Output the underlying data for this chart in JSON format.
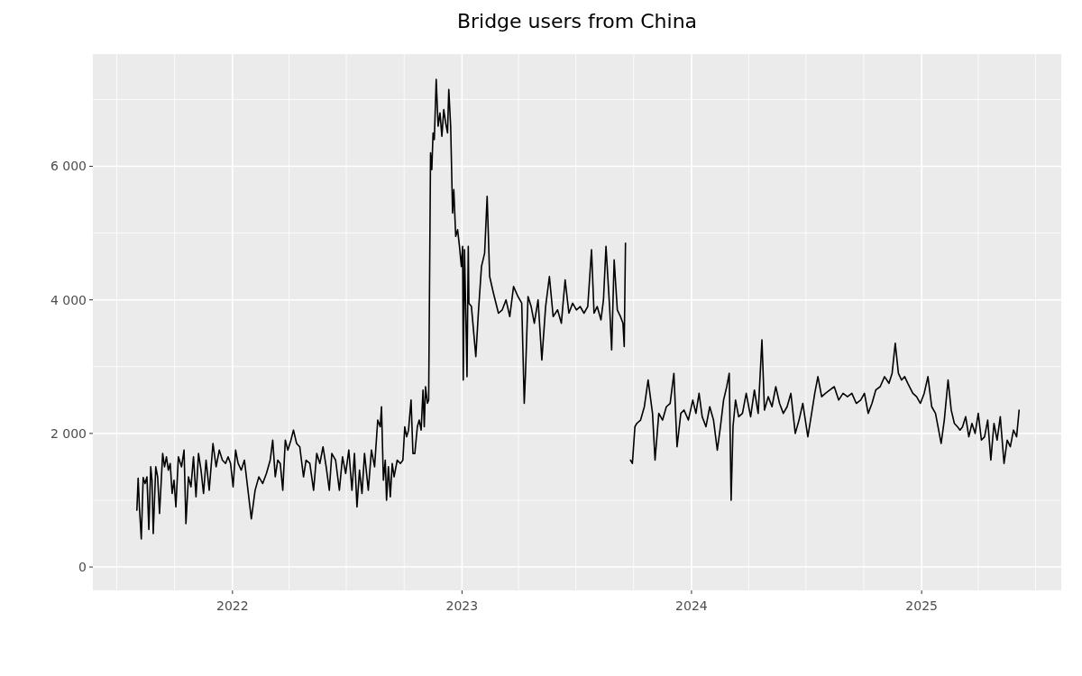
{
  "chart_data": {
    "type": "line",
    "title": "Bridge users from China",
    "xlim": [
      "2021-05-24",
      "2025-08-11"
    ],
    "xticks": [
      {
        "value": "2021-07-01",
        "label": null
      },
      {
        "value": "2021-10-01",
        "label": null
      },
      {
        "value": "2022-01-01",
        "label": "2022"
      },
      {
        "value": "2022-04-01",
        "label": null
      },
      {
        "value": "2022-07-01",
        "label": null
      },
      {
        "value": "2022-10-01",
        "label": null
      },
      {
        "value": "2023-01-01",
        "label": "2023"
      },
      {
        "value": "2023-04-01",
        "label": null
      },
      {
        "value": "2023-07-01",
        "label": null
      },
      {
        "value": "2023-10-01",
        "label": null
      },
      {
        "value": "2024-01-01",
        "label": "2024"
      },
      {
        "value": "2024-04-01",
        "label": null
      },
      {
        "value": "2024-07-01",
        "label": null
      },
      {
        "value": "2024-10-01",
        "label": null
      },
      {
        "value": "2025-01-01",
        "label": "2025"
      },
      {
        "value": "2025-04-01",
        "label": null
      },
      {
        "value": "2025-07-01",
        "label": null
      }
    ],
    "ylim": [
      -350,
      7680
    ],
    "yticks": [
      0,
      {
        "value": 1000,
        "label": null
      },
      {
        "value": 2000,
        "label": "2 000"
      },
      {
        "value": 3000,
        "label": null
      },
      {
        "value": 4000,
        "label": "4 000"
      },
      {
        "value": 5000,
        "label": null
      },
      {
        "value": 6000,
        "label": "6 000"
      },
      {
        "value": 7000,
        "label": null
      }
    ],
    "grid": true,
    "x": [
      "2021-08-02",
      "2021-08-04",
      "2021-08-06",
      "2021-08-09",
      "2021-08-12",
      "2021-08-15",
      "2021-08-18",
      "2021-08-21",
      "2021-08-24",
      "2021-08-26",
      "2021-08-28",
      "2021-09-01",
      "2021-09-04",
      "2021-09-07",
      "2021-09-12",
      "2021-09-15",
      "2021-09-18",
      "2021-09-21",
      "2021-09-24",
      "2021-09-27",
      "2021-09-30",
      "2021-10-03",
      "2021-10-07",
      "2021-10-12",
      "2021-10-16",
      "2021-10-19",
      "2021-10-23",
      "2021-10-27",
      "2021-10-31",
      "2021-11-04",
      "2021-11-08",
      "2021-11-12",
      "2021-11-16",
      "2021-11-20",
      "2021-11-25",
      "2021-12-01",
      "2021-12-06",
      "2021-12-11",
      "2021-12-16",
      "2021-12-21",
      "2021-12-25",
      "2021-12-29",
      "2022-01-02",
      "2022-01-06",
      "2022-01-10",
      "2022-01-15",
      "2022-01-20",
      "2022-01-25",
      "2022-01-31",
      "2022-02-06",
      "2022-02-12",
      "2022-02-18",
      "2022-02-24",
      "2022-03-02",
      "2022-03-06",
      "2022-03-10",
      "2022-03-14",
      "2022-03-18",
      "2022-03-22",
      "2022-03-26",
      "2022-03-30",
      "2022-04-04",
      "2022-04-08",
      "2022-04-13",
      "2022-04-18",
      "2022-04-24",
      "2022-04-28",
      "2022-05-04",
      "2022-05-10",
      "2022-05-15",
      "2022-05-20",
      "2022-05-25",
      "2022-05-30",
      "2022-06-04",
      "2022-06-08",
      "2022-06-14",
      "2022-06-20",
      "2022-06-25",
      "2022-06-30",
      "2022-07-05",
      "2022-07-10",
      "2022-07-14",
      "2022-07-18",
      "2022-07-22",
      "2022-07-26",
      "2022-07-30",
      "2022-08-05",
      "2022-08-10",
      "2022-08-15",
      "2022-08-20",
      "2022-08-24",
      "2022-08-26",
      "2022-08-29",
      "2022-09-01",
      "2022-09-03",
      "2022-09-06",
      "2022-09-09",
      "2022-09-12",
      "2022-09-15",
      "2022-09-20",
      "2022-09-25",
      "2022-09-29",
      "2022-10-02",
      "2022-10-05",
      "2022-10-08",
      "2022-10-12",
      "2022-10-15",
      "2022-10-18",
      "2022-10-22",
      "2022-10-25",
      "2022-10-28",
      "2022-10-31",
      "2022-11-02",
      "2022-11-04",
      "2022-11-07",
      "2022-11-09",
      "2022-11-12",
      "2022-11-14",
      "2022-11-16",
      "2022-11-18",
      "2022-11-21",
      "2022-11-24",
      "2022-11-27",
      "2022-11-30",
      "2022-12-03",
      "2022-12-06",
      "2022-12-09",
      "2022-12-11",
      "2022-12-14",
      "2022-12-17",
      "2022-12-19",
      "2022-12-22",
      "2022-12-25",
      "2022-12-28",
      "2022-12-31",
      "2023-01-02",
      "2023-01-03",
      "2023-01-05",
      "2023-01-09",
      "2023-01-11",
      "2023-01-12",
      "2023-01-16",
      "2023-01-23",
      "2023-01-27",
      "2023-02-01",
      "2023-02-06",
      "2023-02-10",
      "2023-02-14",
      "2023-02-20",
      "2023-02-28",
      "2023-03-06",
      "2023-03-12",
      "2023-03-18",
      "2023-03-24",
      "2023-03-31",
      "2023-04-06",
      "2023-04-10",
      "2023-04-12",
      "2023-04-16",
      "2023-04-21",
      "2023-04-26",
      "2023-05-02",
      "2023-05-08",
      "2023-05-14",
      "2023-05-20",
      "2023-05-26",
      "2023-06-02",
      "2023-06-08",
      "2023-06-14",
      "2023-06-20",
      "2023-06-26",
      "2023-07-02",
      "2023-07-08",
      "2023-07-14",
      "2023-07-20",
      "2023-07-26",
      "2023-07-30",
      "2023-08-04",
      "2023-08-10",
      "2023-08-14",
      "2023-08-18",
      "2023-08-24",
      "2023-08-27",
      "2023-08-31",
      "2023-09-05",
      "2023-09-10",
      "2023-09-14",
      "2023-09-16",
      "2023-09-18",
      "2023-09-22",
      "2023-09-26",
      "2023-09-29",
      "2023-10-03",
      "2023-10-06",
      "2023-10-12",
      "2023-10-18",
      "2023-10-24",
      "2023-10-31",
      "2023-11-04",
      "2023-11-10",
      "2023-11-16",
      "2023-11-22",
      "2023-11-28",
      "2023-12-04",
      "2023-12-09",
      "2023-12-15",
      "2023-12-20",
      "2023-12-27",
      "2024-01-03",
      "2024-01-08",
      "2024-01-13",
      "2024-01-18",
      "2024-01-24",
      "2024-01-30",
      "2024-02-05",
      "2024-02-11",
      "2024-02-16",
      "2024-02-21",
      "2024-02-26",
      "2024-03-01",
      "2024-03-04",
      "2024-03-07",
      "2024-03-11",
      "2024-03-16",
      "2024-03-22",
      "2024-03-28",
      "2024-04-04",
      "2024-04-10",
      "2024-04-16",
      "2024-04-22",
      "2024-04-26",
      "2024-05-02",
      "2024-05-08",
      "2024-05-14",
      "2024-05-20",
      "2024-05-26",
      "2024-06-01",
      "2024-06-07",
      "2024-06-14",
      "2024-06-20",
      "2024-06-26",
      "2024-07-04",
      "2024-07-10",
      "2024-07-15",
      "2024-07-20",
      "2024-07-26",
      "2024-08-01",
      "2024-08-08",
      "2024-08-15",
      "2024-08-22",
      "2024-08-29",
      "2024-09-05",
      "2024-09-12",
      "2024-09-19",
      "2024-09-26",
      "2024-10-02",
      "2024-10-08",
      "2024-10-14",
      "2024-10-20",
      "2024-10-27",
      "2024-11-03",
      "2024-11-10",
      "2024-11-15",
      "2024-11-20",
      "2024-11-25",
      "2024-11-30",
      "2024-12-05",
      "2024-12-10",
      "2024-12-18",
      "2024-12-24",
      "2024-12-30",
      "2025-01-05",
      "2025-01-11",
      "2025-01-17",
      "2025-01-23",
      "2025-01-28",
      "2025-02-01",
      "2025-02-06",
      "2025-02-12",
      "2025-02-17",
      "2025-02-22",
      "2025-02-27",
      "2025-03-03",
      "2025-03-07",
      "2025-03-12",
      "2025-03-17",
      "2025-03-22",
      "2025-03-27",
      "2025-04-01",
      "2025-04-06",
      "2025-04-11",
      "2025-04-16",
      "2025-04-21",
      "2025-04-26",
      "2025-05-01",
      "2025-05-06",
      "2025-05-12",
      "2025-05-17",
      "2025-05-22",
      "2025-05-27",
      "2025-06-01",
      "2025-06-05"
    ],
    "series": [
      {
        "color": "#000000",
        "values": [
          850,
          1330,
          900,
          420,
          1340,
          1250,
          1350,
          560,
          1500,
          1300,
          500,
          1500,
          1350,
          800,
          1700,
          1500,
          1650,
          1450,
          1550,
          1100,
          1300,
          900,
          1650,
          1500,
          1750,
          650,
          1350,
          1200,
          1650,
          1050,
          1700,
          1450,
          1100,
          1600,
          1150,
          1850,
          1500,
          1750,
          1600,
          1550,
          1650,
          1550,
          1200,
          1750,
          1550,
          1450,
          1600,
          1200,
          720,
          1150,
          1350,
          1250,
          1400,
          1600,
          1900,
          1350,
          1600,
          1550,
          1150,
          1900,
          1750,
          1900,
          2050,
          1850,
          1800,
          1350,
          1600,
          1550,
          1150,
          1700,
          1550,
          1800,
          1500,
          1150,
          1700,
          1600,
          1150,
          1650,
          1400,
          1750,
          1150,
          1700,
          900,
          1450,
          1100,
          1700,
          1150,
          1750,
          1500,
          2200,
          2100,
          2400,
          1300,
          1600,
          1000,
          1500,
          1050,
          1550,
          1350,
          1600,
          1550,
          1600,
          2100,
          1950,
          2050,
          2500,
          1700,
          1700,
          2100,
          2200,
          2050,
          2650,
          2100,
          2700,
          2450,
          2500,
          6200,
          5950,
          6500,
          6400,
          7300,
          6600,
          6800,
          6450,
          6850,
          6650,
          6500,
          7150,
          6600,
          5300,
          5650,
          4950,
          5050,
          4800,
          4500,
          4800,
          2800,
          4750,
          2850,
          4800,
          3950,
          3900,
          3150,
          3800,
          4500,
          4700,
          5550,
          4350,
          4100,
          3800,
          3850,
          4000,
          3750,
          4200,
          4050,
          3950,
          2450,
          2900,
          4050,
          3900,
          3650,
          4000,
          3100,
          3900,
          4350,
          3750,
          3850,
          3650,
          4300,
          3800,
          3950,
          3850,
          3900,
          3800,
          3900,
          4750,
          3800,
          3900,
          3700,
          4000,
          4800,
          3850,
          3250,
          4600,
          3850,
          3750,
          3650,
          3300,
          4850,
          null,
          1600,
          1550,
          2100,
          2150,
          2200,
          2400,
          2800,
          2300,
          1600,
          2300,
          2200,
          2400,
          2450,
          2900,
          1800,
          2300,
          2350,
          2200,
          2500,
          2300,
          2600,
          2250,
          2100,
          2400,
          2200,
          1750,
          2100,
          2500,
          2700,
          2900,
          1000,
          2100,
          2500,
          2250,
          2300,
          2600,
          2250,
          2650,
          2300,
          3400,
          2350,
          2550,
          2400,
          2700,
          2450,
          2300,
          2400,
          2600,
          2000,
          2200,
          2450,
          1950,
          2300,
          2600,
          2850,
          2550,
          2600,
          2650,
          2700,
          2500,
          2600,
          2550,
          2600,
          2450,
          2500,
          2600,
          2300,
          2450,
          2650,
          2700,
          2850,
          2750,
          2900,
          3350,
          2900,
          2800,
          2850,
          2750,
          2600,
          2550,
          2450,
          2600,
          2850,
          2400,
          2300,
          2050,
          1850,
          2200,
          2800,
          2350,
          2150,
          2100,
          2050,
          2100,
          2250,
          1950,
          2150,
          2000,
          2300,
          1900,
          1950,
          2200,
          1600,
          2150,
          1900,
          2250,
          1550,
          1900,
          1800,
          2050,
          1950,
          2350
        ]
      }
    ]
  }
}
